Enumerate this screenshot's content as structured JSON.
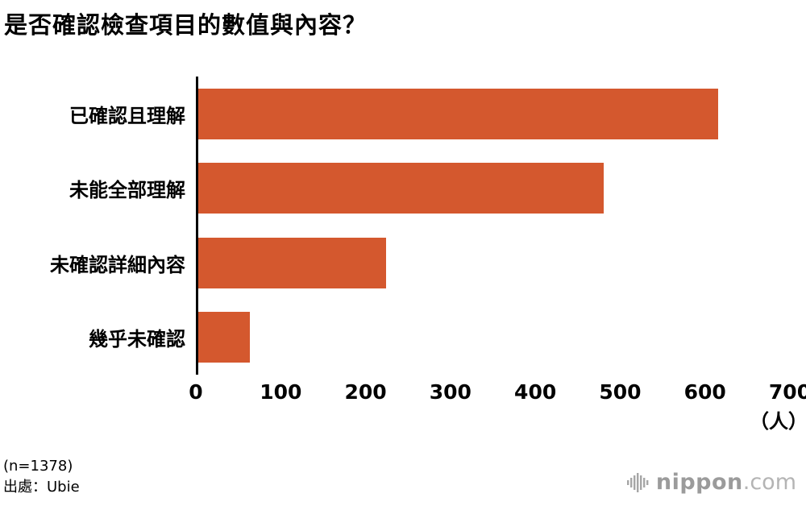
{
  "title": "是否確認檢查項目的數值與內容？",
  "chart_data": {
    "type": "bar",
    "orientation": "horizontal",
    "title": "是否確認檢查項目的數值與內容？",
    "categories": [
      "已確認且理解",
      "未能全部理解",
      "未確認詳細內容",
      "幾乎未確認"
    ],
    "values": [
      615,
      480,
      222,
      61
    ],
    "xlim": [
      0,
      700
    ],
    "xticks": [
      0,
      100,
      200,
      300,
      400,
      500,
      600,
      700
    ],
    "unit_label": "（人）",
    "bar_color": "#d4582e",
    "grid": false,
    "legend": "none"
  },
  "footer": {
    "sample_size": "(n=1378)",
    "source": "出處：Ubie",
    "logo": {
      "icon": "waveform-icon",
      "text": "nippon",
      "suffix": ".com",
      "color": "#9b9b9b"
    }
  }
}
